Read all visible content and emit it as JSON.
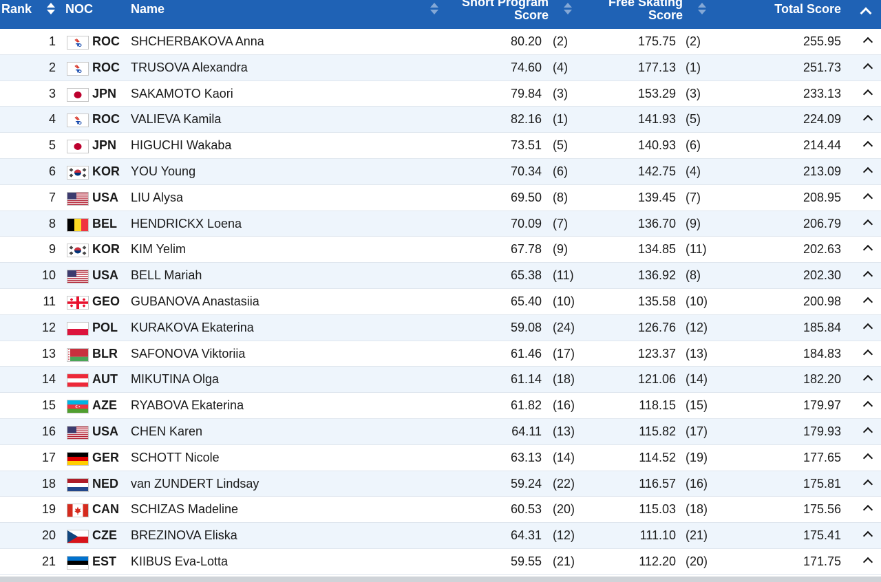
{
  "header": {
    "rank": "Rank",
    "noc": "NOC",
    "name": "Name",
    "short_program_line1": "Short Program",
    "short_program_line2": "Score",
    "free_skating_line1": "Free Skating",
    "free_skating_line2": "Score",
    "total": "Total Score"
  },
  "rows": [
    {
      "rank": "1",
      "noc": "ROC",
      "flag": "roc",
      "name": "SHCHERBAKOVA Anna",
      "sp": "80.20",
      "sp_rank": "(2)",
      "fs": "175.75",
      "fs_rank": "(2)",
      "total": "255.95"
    },
    {
      "rank": "2",
      "noc": "ROC",
      "flag": "roc",
      "name": "TRUSOVA Alexandra",
      "sp": "74.60",
      "sp_rank": "(4)",
      "fs": "177.13",
      "fs_rank": "(1)",
      "total": "251.73"
    },
    {
      "rank": "3",
      "noc": "JPN",
      "flag": "jpn",
      "name": "SAKAMOTO Kaori",
      "sp": "79.84",
      "sp_rank": "(3)",
      "fs": "153.29",
      "fs_rank": "(3)",
      "total": "233.13"
    },
    {
      "rank": "4",
      "noc": "ROC",
      "flag": "roc",
      "name": "VALIEVA Kamila",
      "sp": "82.16",
      "sp_rank": "(1)",
      "fs": "141.93",
      "fs_rank": "(5)",
      "total": "224.09"
    },
    {
      "rank": "5",
      "noc": "JPN",
      "flag": "jpn",
      "name": "HIGUCHI Wakaba",
      "sp": "73.51",
      "sp_rank": "(5)",
      "fs": "140.93",
      "fs_rank": "(6)",
      "total": "214.44"
    },
    {
      "rank": "6",
      "noc": "KOR",
      "flag": "kor",
      "name": "YOU Young",
      "sp": "70.34",
      "sp_rank": "(6)",
      "fs": "142.75",
      "fs_rank": "(4)",
      "total": "213.09"
    },
    {
      "rank": "7",
      "noc": "USA",
      "flag": "usa",
      "name": "LIU Alysa",
      "sp": "69.50",
      "sp_rank": "(8)",
      "fs": "139.45",
      "fs_rank": "(7)",
      "total": "208.95"
    },
    {
      "rank": "8",
      "noc": "BEL",
      "flag": "bel",
      "name": "HENDRICKX Loena",
      "sp": "70.09",
      "sp_rank": "(7)",
      "fs": "136.70",
      "fs_rank": "(9)",
      "total": "206.79"
    },
    {
      "rank": "9",
      "noc": "KOR",
      "flag": "kor",
      "name": "KIM Yelim",
      "sp": "67.78",
      "sp_rank": "(9)",
      "fs": "134.85",
      "fs_rank": "(11)",
      "total": "202.63"
    },
    {
      "rank": "10",
      "noc": "USA",
      "flag": "usa",
      "name": "BELL Mariah",
      "sp": "65.38",
      "sp_rank": "(11)",
      "fs": "136.92",
      "fs_rank": "(8)",
      "total": "202.30"
    },
    {
      "rank": "11",
      "noc": "GEO",
      "flag": "geo",
      "name": "GUBANOVA Anastasiia",
      "sp": "65.40",
      "sp_rank": "(10)",
      "fs": "135.58",
      "fs_rank": "(10)",
      "total": "200.98"
    },
    {
      "rank": "12",
      "noc": "POL",
      "flag": "pol",
      "name": "KURAKOVA Ekaterina",
      "sp": "59.08",
      "sp_rank": "(24)",
      "fs": "126.76",
      "fs_rank": "(12)",
      "total": "185.84"
    },
    {
      "rank": "13",
      "noc": "BLR",
      "flag": "blr",
      "name": "SAFONOVA Viktoriia",
      "sp": "61.46",
      "sp_rank": "(17)",
      "fs": "123.37",
      "fs_rank": "(13)",
      "total": "184.83"
    },
    {
      "rank": "14",
      "noc": "AUT",
      "flag": "aut",
      "name": "MIKUTINA Olga",
      "sp": "61.14",
      "sp_rank": "(18)",
      "fs": "121.06",
      "fs_rank": "(14)",
      "total": "182.20"
    },
    {
      "rank": "15",
      "noc": "AZE",
      "flag": "aze",
      "name": "RYABOVA Ekaterina",
      "sp": "61.82",
      "sp_rank": "(16)",
      "fs": "118.15",
      "fs_rank": "(15)",
      "total": "179.97"
    },
    {
      "rank": "16",
      "noc": "USA",
      "flag": "usa",
      "name": "CHEN Karen",
      "sp": "64.11",
      "sp_rank": "(13)",
      "fs": "115.82",
      "fs_rank": "(17)",
      "total": "179.93"
    },
    {
      "rank": "17",
      "noc": "GER",
      "flag": "ger",
      "name": "SCHOTT Nicole",
      "sp": "63.13",
      "sp_rank": "(14)",
      "fs": "114.52",
      "fs_rank": "(19)",
      "total": "177.65"
    },
    {
      "rank": "18",
      "noc": "NED",
      "flag": "ned",
      "name": "van ZUNDERT Lindsay",
      "sp": "59.24",
      "sp_rank": "(22)",
      "fs": "116.57",
      "fs_rank": "(16)",
      "total": "175.81"
    },
    {
      "rank": "19",
      "noc": "CAN",
      "flag": "can",
      "name": "SCHIZAS Madeline",
      "sp": "60.53",
      "sp_rank": "(20)",
      "fs": "115.03",
      "fs_rank": "(18)",
      "total": "175.56"
    },
    {
      "rank": "20",
      "noc": "CZE",
      "flag": "cze",
      "name": "BREZINOVA Eliska",
      "sp": "64.31",
      "sp_rank": "(12)",
      "fs": "111.10",
      "fs_rank": "(21)",
      "total": "175.41"
    },
    {
      "rank": "21",
      "noc": "EST",
      "flag": "est",
      "name": "KIIBUS Eva-Lotta",
      "sp": "59.55",
      "sp_rank": "(21)",
      "fs": "112.20",
      "fs_rank": "(20)",
      "total": "171.75"
    }
  ],
  "colors": {
    "header_bg": "#1f62b5",
    "row_alt_bg": "#eef5fc",
    "row_border": "#dfe6ee"
  },
  "icons": {
    "sort": "sort-arrows-icon",
    "collapse": "chevron-up-icon",
    "expand_row": "chevron-up-icon"
  }
}
